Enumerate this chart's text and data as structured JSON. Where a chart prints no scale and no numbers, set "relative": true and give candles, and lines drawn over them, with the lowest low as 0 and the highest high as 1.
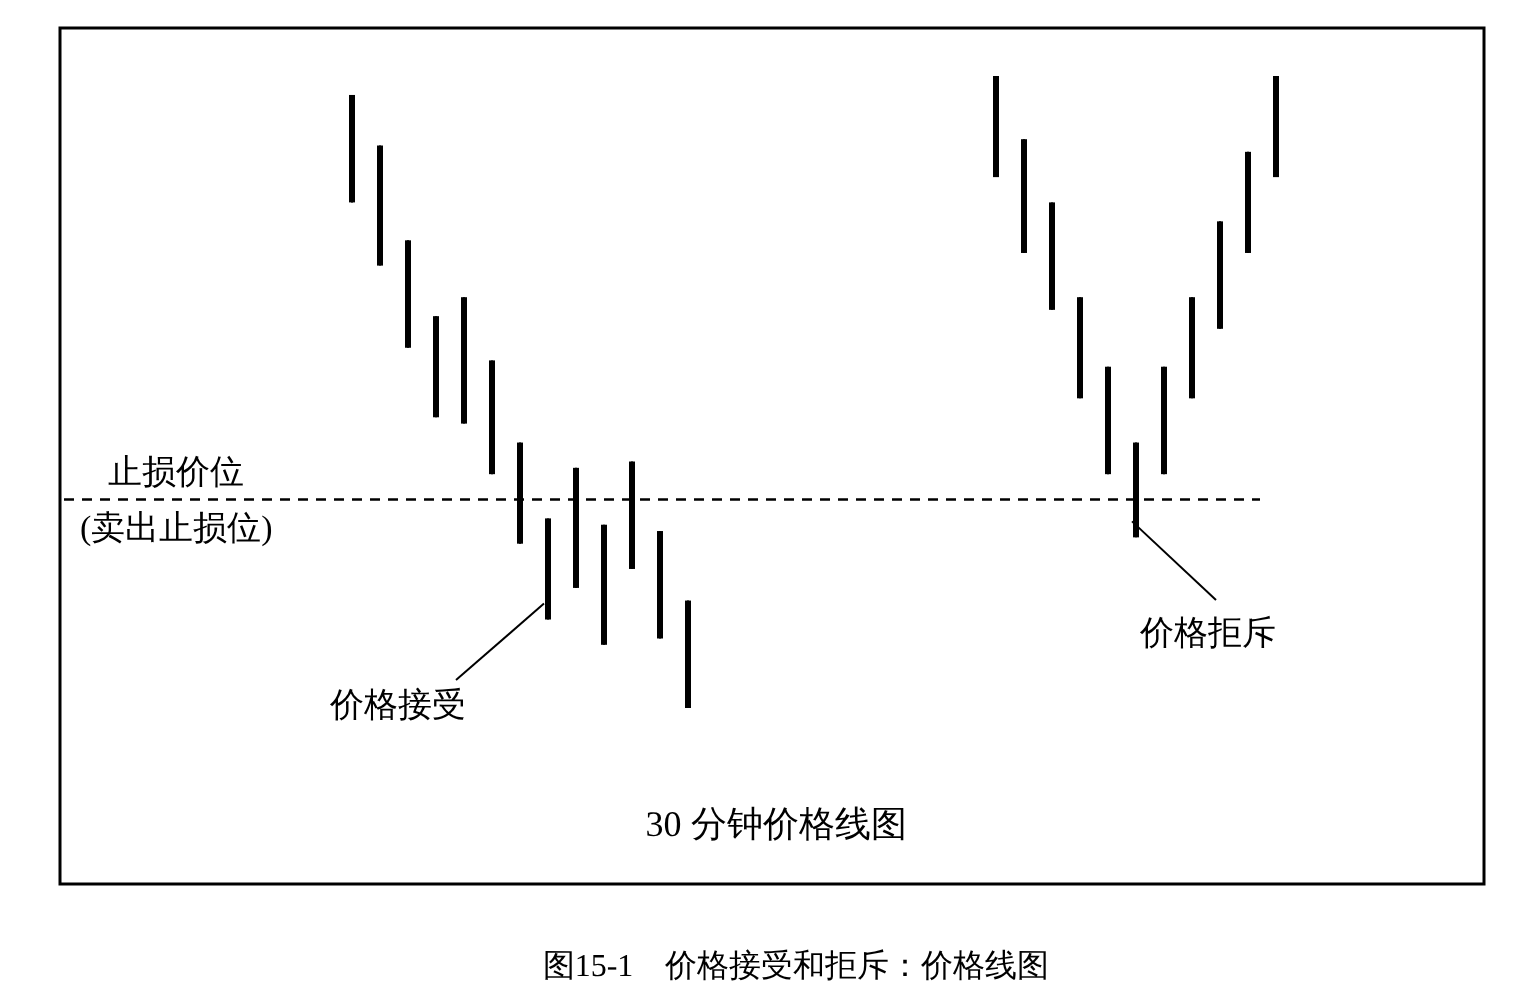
{
  "chart_data": {
    "type": "candlestick",
    "relative": true,
    "title": "图15-1　价格接受和拒斥：价格线图",
    "xlabel": "30 分钟价格线图",
    "categories": [
      null,
      null,
      null,
      null,
      null,
      null,
      null,
      null,
      null,
      null,
      null,
      null,
      null,
      null,
      null,
      null,
      null,
      null,
      null,
      null,
      null,
      null,
      null,
      null,
      null,
      null,
      null,
      null,
      null,
      null,
      null,
      null,
      null,
      null
    ],
    "ohlc": [
      [
        0.97,
        0.97,
        0.8,
        0.8
      ],
      [
        0.89,
        0.89,
        0.7,
        0.7
      ],
      [
        0.74,
        0.74,
        0.57,
        0.57
      ],
      [
        0.62,
        0.62,
        0.46,
        0.46
      ],
      [
        0.65,
        0.65,
        0.45,
        0.45
      ],
      [
        0.55,
        0.55,
        0.37,
        0.37
      ],
      [
        0.42,
        0.42,
        0.26,
        0.26
      ],
      [
        0.3,
        0.3,
        0.14,
        0.14
      ],
      [
        0.38,
        0.38,
        0.19,
        0.19
      ],
      [
        0.29,
        0.29,
        0.1,
        0.1
      ],
      [
        0.39,
        0.39,
        0.22,
        0.22
      ],
      [
        0.28,
        0.28,
        0.11,
        0.11
      ],
      [
        0.17,
        0.17,
        0.0,
        0.0
      ],
      null,
      null,
      null,
      null,
      null,
      null,
      null,
      null,
      null,
      null,
      [
        1.0,
        1.0,
        0.84,
        0.84
      ],
      [
        0.9,
        0.9,
        0.72,
        0.72
      ],
      [
        0.8,
        0.8,
        0.63,
        0.63
      ],
      [
        0.65,
        0.65,
        0.49,
        0.49
      ],
      [
        0.54,
        0.54,
        0.37,
        0.37
      ],
      [
        0.42,
        0.42,
        0.27,
        0.27
      ],
      [
        0.54,
        0.54,
        0.37,
        0.37
      ],
      [
        0.65,
        0.65,
        0.49,
        0.49
      ],
      [
        0.77,
        0.77,
        0.6,
        0.6
      ],
      [
        0.88,
        0.88,
        0.72,
        0.72
      ],
      [
        1.0,
        1.0,
        0.84,
        0.84
      ]
    ],
    "ref_lines": [
      {
        "axis": "y",
        "value": 0.33,
        "label": "止损价位\n(卖出止损位)",
        "color": "#000000",
        "line_style": "dashed"
      }
    ],
    "annotations": [
      "价格接受",
      "价格拒斥"
    ]
  }
}
